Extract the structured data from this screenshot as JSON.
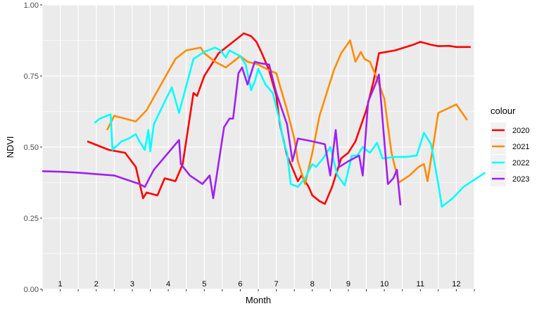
{
  "chart_data": {
    "type": "line",
    "xlabel": "Month",
    "ylabel": "NDVI",
    "ylim": [
      0,
      1
    ],
    "xlim": [
      0.5,
      12.5
    ],
    "x_ticks": [
      "1",
      "2",
      "3",
      "4",
      "5",
      "6",
      "7",
      "8",
      "9",
      "10",
      "11",
      "12"
    ],
    "y_ticks": [
      "0.00",
      "0.25",
      "0.50",
      "0.75",
      "1.00"
    ],
    "grid": true,
    "legend": {
      "title": "colour",
      "position": "right"
    },
    "series": [
      {
        "name": "2020",
        "color": "#ff0000",
        "points": [
          [
            1.75,
            0.52
          ],
          [
            2.35,
            0.49
          ],
          [
            2.8,
            0.48
          ],
          [
            3.1,
            0.43
          ],
          [
            3.3,
            0.32
          ],
          [
            3.4,
            0.34
          ],
          [
            3.7,
            0.33
          ],
          [
            3.9,
            0.39
          ],
          [
            4.2,
            0.38
          ],
          [
            4.4,
            0.44
          ],
          [
            4.7,
            0.69
          ],
          [
            4.8,
            0.68
          ],
          [
            5.0,
            0.75
          ],
          [
            5.2,
            0.79
          ],
          [
            5.4,
            0.83
          ],
          [
            5.6,
            0.85
          ],
          [
            5.8,
            0.87
          ],
          [
            6.1,
            0.9
          ],
          [
            6.3,
            0.89
          ],
          [
            6.45,
            0.87
          ],
          [
            6.6,
            0.83
          ],
          [
            6.8,
            0.77
          ],
          [
            7.0,
            0.68
          ],
          [
            7.1,
            0.58
          ],
          [
            7.3,
            0.47
          ],
          [
            7.4,
            0.44
          ],
          [
            7.5,
            0.41
          ],
          [
            7.6,
            0.38
          ],
          [
            7.7,
            0.4
          ],
          [
            7.9,
            0.36
          ],
          [
            8.0,
            0.33
          ],
          [
            8.2,
            0.31
          ],
          [
            8.35,
            0.3
          ],
          [
            8.55,
            0.36
          ],
          [
            8.8,
            0.46
          ],
          [
            9.0,
            0.48
          ],
          [
            9.2,
            0.52
          ],
          [
            9.5,
            0.63
          ],
          [
            9.7,
            0.73
          ],
          [
            9.85,
            0.83
          ],
          [
            10.3,
            0.84
          ],
          [
            10.8,
            0.86
          ],
          [
            11.0,
            0.87
          ],
          [
            11.3,
            0.86
          ],
          [
            11.5,
            0.855
          ],
          [
            11.8,
            0.856
          ],
          [
            12.0,
            0.852
          ],
          [
            12.4,
            0.852
          ]
        ]
      },
      {
        "name": "2021",
        "color": "#ff8c00",
        "points": [
          [
            2.3,
            0.56
          ],
          [
            2.5,
            0.61
          ],
          [
            3.1,
            0.59
          ],
          [
            3.4,
            0.63
          ],
          [
            3.8,
            0.72
          ],
          [
            4.2,
            0.81
          ],
          [
            4.5,
            0.84
          ],
          [
            4.9,
            0.85
          ],
          [
            5.0,
            0.83
          ],
          [
            5.3,
            0.8
          ],
          [
            5.6,
            0.78
          ],
          [
            5.8,
            0.8
          ],
          [
            6.0,
            0.82
          ],
          [
            6.2,
            0.8
          ],
          [
            6.5,
            0.79
          ],
          [
            6.8,
            0.77
          ],
          [
            7.0,
            0.76
          ],
          [
            7.3,
            0.63
          ],
          [
            7.5,
            0.53
          ],
          [
            7.6,
            0.45
          ],
          [
            7.8,
            0.37
          ],
          [
            8.0,
            0.48
          ],
          [
            8.2,
            0.61
          ],
          [
            8.6,
            0.77
          ],
          [
            8.8,
            0.83
          ],
          [
            9.05,
            0.875
          ],
          [
            9.2,
            0.8
          ],
          [
            9.35,
            0.835
          ],
          [
            9.45,
            0.81
          ],
          [
            9.6,
            0.8
          ],
          [
            9.8,
            0.74
          ],
          [
            10.0,
            0.67
          ],
          [
            10.2,
            0.48
          ],
          [
            10.4,
            0.375
          ],
          [
            10.7,
            0.4
          ],
          [
            10.95,
            0.43
          ],
          [
            11.1,
            0.44
          ],
          [
            11.2,
            0.38
          ],
          [
            11.4,
            0.54
          ],
          [
            11.5,
            0.62
          ],
          [
            12.0,
            0.65
          ],
          [
            12.3,
            0.595
          ]
        ]
      },
      {
        "name": "2022",
        "color": "#00ffff",
        "points": [
          [
            1.95,
            0.585
          ],
          [
            2.1,
            0.6
          ],
          [
            2.4,
            0.615
          ],
          [
            2.45,
            0.49
          ],
          [
            2.7,
            0.52
          ],
          [
            2.9,
            0.53
          ],
          [
            3.1,
            0.545
          ],
          [
            3.2,
            0.52
          ],
          [
            3.35,
            0.49
          ],
          [
            3.45,
            0.56
          ],
          [
            3.5,
            0.485
          ],
          [
            3.6,
            0.58
          ],
          [
            3.9,
            0.66
          ],
          [
            4.1,
            0.71
          ],
          [
            4.3,
            0.62
          ],
          [
            4.7,
            0.81
          ],
          [
            5.0,
            0.835
          ],
          [
            5.3,
            0.85
          ],
          [
            5.45,
            0.84
          ],
          [
            5.6,
            0.815
          ],
          [
            5.7,
            0.84
          ],
          [
            5.85,
            0.83
          ],
          [
            6.0,
            0.82
          ],
          [
            6.15,
            0.79
          ],
          [
            6.3,
            0.7
          ],
          [
            6.4,
            0.73
          ],
          [
            6.5,
            0.775
          ],
          [
            6.7,
            0.72
          ],
          [
            6.9,
            0.69
          ],
          [
            7.1,
            0.59
          ],
          [
            7.2,
            0.52
          ],
          [
            7.3,
            0.48
          ],
          [
            7.4,
            0.37
          ],
          [
            7.6,
            0.36
          ],
          [
            7.8,
            0.39
          ],
          [
            8.0,
            0.44
          ],
          [
            8.1,
            0.43
          ],
          [
            8.3,
            0.46
          ],
          [
            8.5,
            0.5
          ],
          [
            8.7,
            0.4
          ],
          [
            8.9,
            0.365
          ],
          [
            9.1,
            0.47
          ],
          [
            9.25,
            0.47
          ],
          [
            9.4,
            0.5
          ],
          [
            9.6,
            0.48
          ],
          [
            9.8,
            0.515
          ],
          [
            9.95,
            0.46
          ],
          [
            10.3,
            0.465
          ],
          [
            10.6,
            0.465
          ],
          [
            10.9,
            0.47
          ],
          [
            11.1,
            0.55
          ],
          [
            11.3,
            0.51
          ],
          [
            11.5,
            0.37
          ],
          [
            11.6,
            0.29
          ],
          [
            11.9,
            0.32
          ],
          [
            12.2,
            0.36
          ],
          [
            12.8,
            0.41
          ]
        ]
      },
      {
        "name": "2023",
        "color": "#a020f0",
        "points": [
          [
            0.5,
            0.415
          ],
          [
            1.0,
            0.413
          ],
          [
            1.5,
            0.41
          ],
          [
            2.5,
            0.4
          ],
          [
            3.2,
            0.37
          ],
          [
            3.35,
            0.36
          ],
          [
            3.6,
            0.42
          ],
          [
            4.0,
            0.48
          ],
          [
            4.3,
            0.525
          ],
          [
            4.35,
            0.44
          ],
          [
            4.6,
            0.4
          ],
          [
            4.95,
            0.37
          ],
          [
            5.15,
            0.4
          ],
          [
            5.25,
            0.32
          ],
          [
            5.55,
            0.57
          ],
          [
            5.7,
            0.6
          ],
          [
            5.8,
            0.6
          ],
          [
            5.95,
            0.76
          ],
          [
            6.05,
            0.78
          ],
          [
            6.2,
            0.72
          ],
          [
            6.4,
            0.8
          ],
          [
            6.55,
            0.795
          ],
          [
            6.8,
            0.79
          ],
          [
            7.0,
            0.69
          ],
          [
            7.3,
            0.58
          ],
          [
            7.45,
            0.45
          ],
          [
            7.6,
            0.53
          ],
          [
            8.0,
            0.52
          ],
          [
            8.35,
            0.51
          ],
          [
            8.5,
            0.4
          ],
          [
            8.65,
            0.56
          ],
          [
            8.75,
            0.43
          ],
          [
            9.0,
            0.45
          ],
          [
            9.3,
            0.47
          ],
          [
            9.4,
            0.4
          ],
          [
            9.55,
            0.66
          ],
          [
            9.75,
            0.72
          ],
          [
            9.85,
            0.755
          ],
          [
            9.95,
            0.6
          ],
          [
            10.1,
            0.37
          ],
          [
            10.25,
            0.39
          ],
          [
            10.35,
            0.42
          ],
          [
            10.45,
            0.295
          ]
        ]
      }
    ]
  }
}
